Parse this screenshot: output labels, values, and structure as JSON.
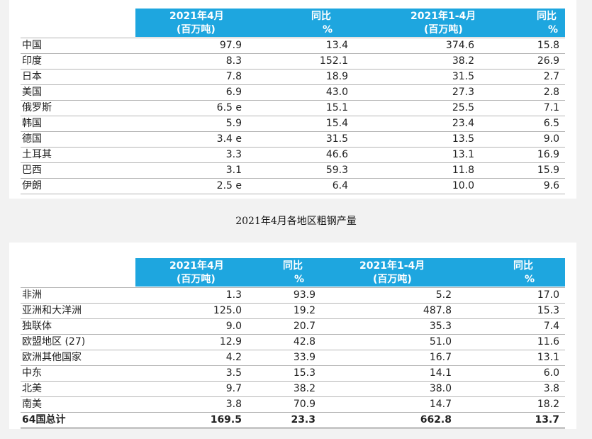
{
  "table1": {
    "headers": [
      "2021年4月",
      "(百万吨)",
      "同比",
      "%",
      "2021年1-4月",
      "(百万吨)",
      "同比",
      "%"
    ],
    "rows": [
      {
        "name": "中国",
        "v1": "97.9",
        "v2": "13.4",
        "v3": "374.6",
        "v4": "15.8"
      },
      {
        "name": "印度",
        "v1": "8.3",
        "v2": "152.1",
        "v3": "38.2",
        "v4": "26.9"
      },
      {
        "name": "日本",
        "v1": "7.8",
        "v2": "18.9",
        "v3": "31.5",
        "v4": "2.7"
      },
      {
        "name": "美国",
        "v1": "6.9",
        "v2": "43.0",
        "v3": "27.3",
        "v4": "2.8"
      },
      {
        "name": "俄罗斯",
        "v1": "6.5  e",
        "v2": "15.1",
        "v3": "25.5",
        "v4": "7.1"
      },
      {
        "name": "韩国",
        "v1": "5.9",
        "v2": "15.4",
        "v3": "23.4",
        "v4": "6.5"
      },
      {
        "name": "德国",
        "v1": "3.4  e",
        "v2": "31.5",
        "v3": "13.5",
        "v4": "9.0"
      },
      {
        "name": "土耳其",
        "v1": "3.3",
        "v2": "46.6",
        "v3": "13.1",
        "v4": "16.9"
      },
      {
        "name": "巴西",
        "v1": "3.1",
        "v2": "59.3",
        "v3": "11.8",
        "v4": "15.9"
      },
      {
        "name": "伊朗",
        "v1": "2.5  e",
        "v2": "6.4",
        "v3": "10.0",
        "v4": "9.6"
      }
    ]
  },
  "caption": "2021年4月各地区粗钢产量",
  "table2": {
    "headers": [
      "2021年4月",
      "(百万吨)",
      "同比",
      "%",
      "2021年1-4月",
      "(百万吨)",
      "同比",
      "%"
    ],
    "rows": [
      {
        "name": "非洲",
        "v1": "1.3",
        "v2": "93.9",
        "v3": "5.2",
        "v4": "17.0"
      },
      {
        "name": "亚洲和大洋洲",
        "v1": "125.0",
        "v2": "19.2",
        "v3": "487.8",
        "v4": "15.3"
      },
      {
        "name": "独联体",
        "v1": "9.0",
        "v2": "20.7",
        "v3": "35.3",
        "v4": "7.4"
      },
      {
        "name": "欧盟地区 (27)",
        "v1": "12.9",
        "v2": "42.8",
        "v3": "51.0",
        "v4": "11.6"
      },
      {
        "name": "欧洲其他国家",
        "v1": "4.2",
        "v2": "33.9",
        "v3": "16.7",
        "v4": "13.1"
      },
      {
        "name": "中东",
        "v1": "3.5",
        "v2": "15.3",
        "v3": "14.1",
        "v4": "6.0"
      },
      {
        "name": "北美",
        "v1": "9.7",
        "v2": "38.2",
        "v3": "38.0",
        "v4": "3.8"
      },
      {
        "name": "南美",
        "v1": "3.8",
        "v2": "70.9",
        "v3": "14.7",
        "v4": "18.2"
      }
    ],
    "total": {
      "name": "64国总计",
      "v1": "169.5",
      "v2": "23.3",
      "v3": "662.8",
      "v4": "13.7"
    }
  }
}
